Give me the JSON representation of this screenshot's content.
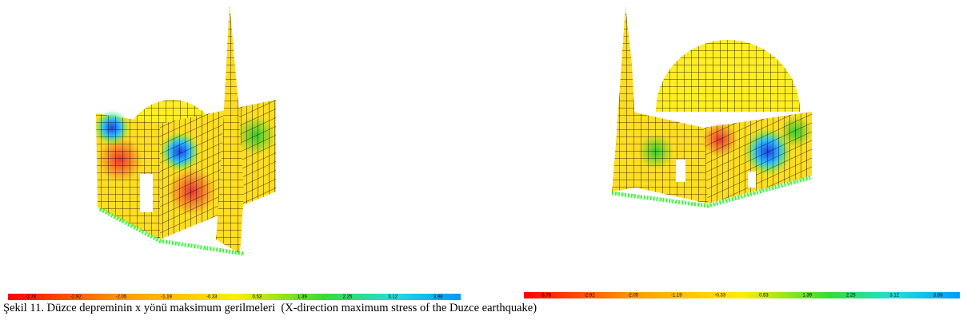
{
  "figure": {
    "panels": [
      {
        "colorbar": {
          "ticks": [
            -3.78,
            -2.92,
            -2.05,
            -1.19,
            -0.33,
            0.53,
            1.39,
            2.25,
            3.12,
            3.98
          ]
        }
      },
      {
        "colorbar": {
          "ticks": [
            -3.78,
            -2.92,
            -2.05,
            -1.19,
            -0.33,
            0.53,
            1.39,
            2.25,
            3.12,
            3.98
          ]
        }
      }
    ],
    "caption": "Şekil 11. Düzce depreminin x yönü maksimum gerilmeleri  (X-direction maximum stress of the Duzce earthquake)"
  }
}
